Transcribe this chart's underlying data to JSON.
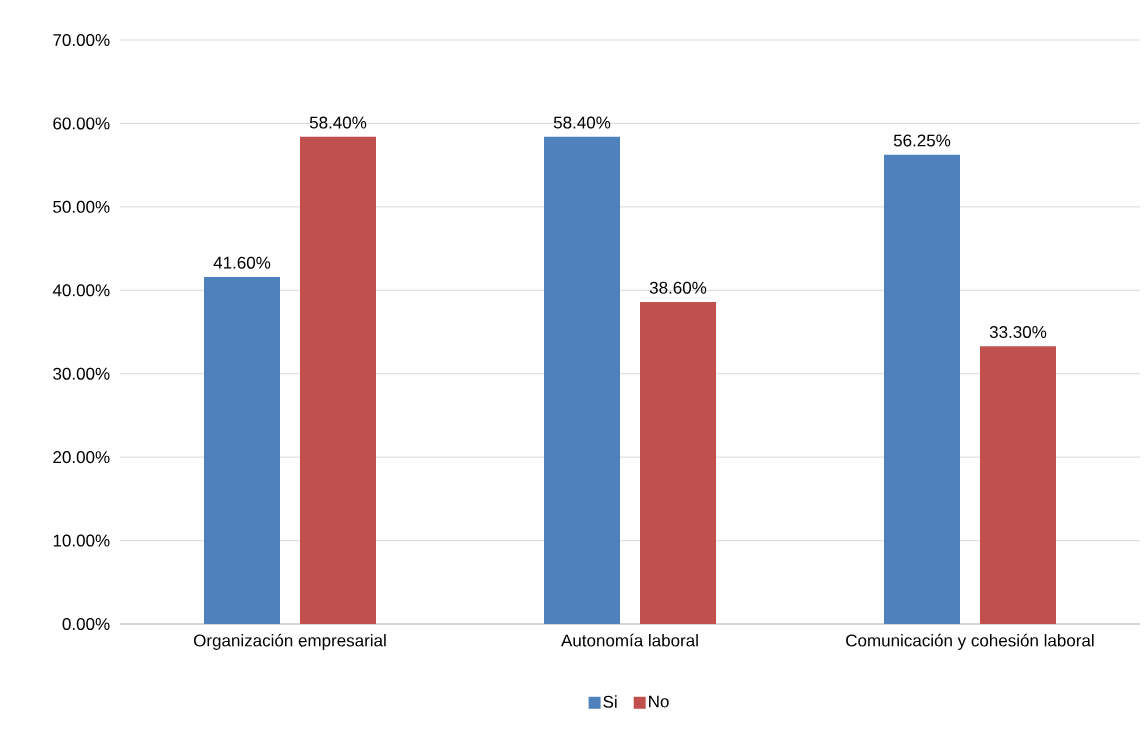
{
  "chart_data": {
    "type": "bar",
    "categories": [
      "Organización empresarial",
      "Autonomía laboral",
      "Comunicación y cohesión laboral"
    ],
    "series": [
      {
        "name": "Si",
        "color": "#4f81bd",
        "values": [
          41.6,
          58.4,
          56.25
        ],
        "value_labels": [
          "41.60%",
          "58.40%",
          "56.25%"
        ]
      },
      {
        "name": "No",
        "color": "#c0504d",
        "values": [
          58.4,
          38.6,
          33.3
        ],
        "value_labels": [
          "58.40%",
          "38.60%",
          "33.30%"
        ]
      }
    ],
    "ylim": [
      0,
      70
    ],
    "yticks": [
      {
        "value": 0,
        "label": "0.00%"
      },
      {
        "value": 10,
        "label": "10.00%"
      },
      {
        "value": 20,
        "label": "20.00%"
      },
      {
        "value": 30,
        "label": "30.00%"
      },
      {
        "value": 40,
        "label": "40.00%"
      },
      {
        "value": 50,
        "label": "50.00%"
      },
      {
        "value": 60,
        "label": "60.00%"
      },
      {
        "value": 70,
        "label": "70.00%"
      }
    ],
    "grid": "y",
    "legend": "bottom"
  }
}
